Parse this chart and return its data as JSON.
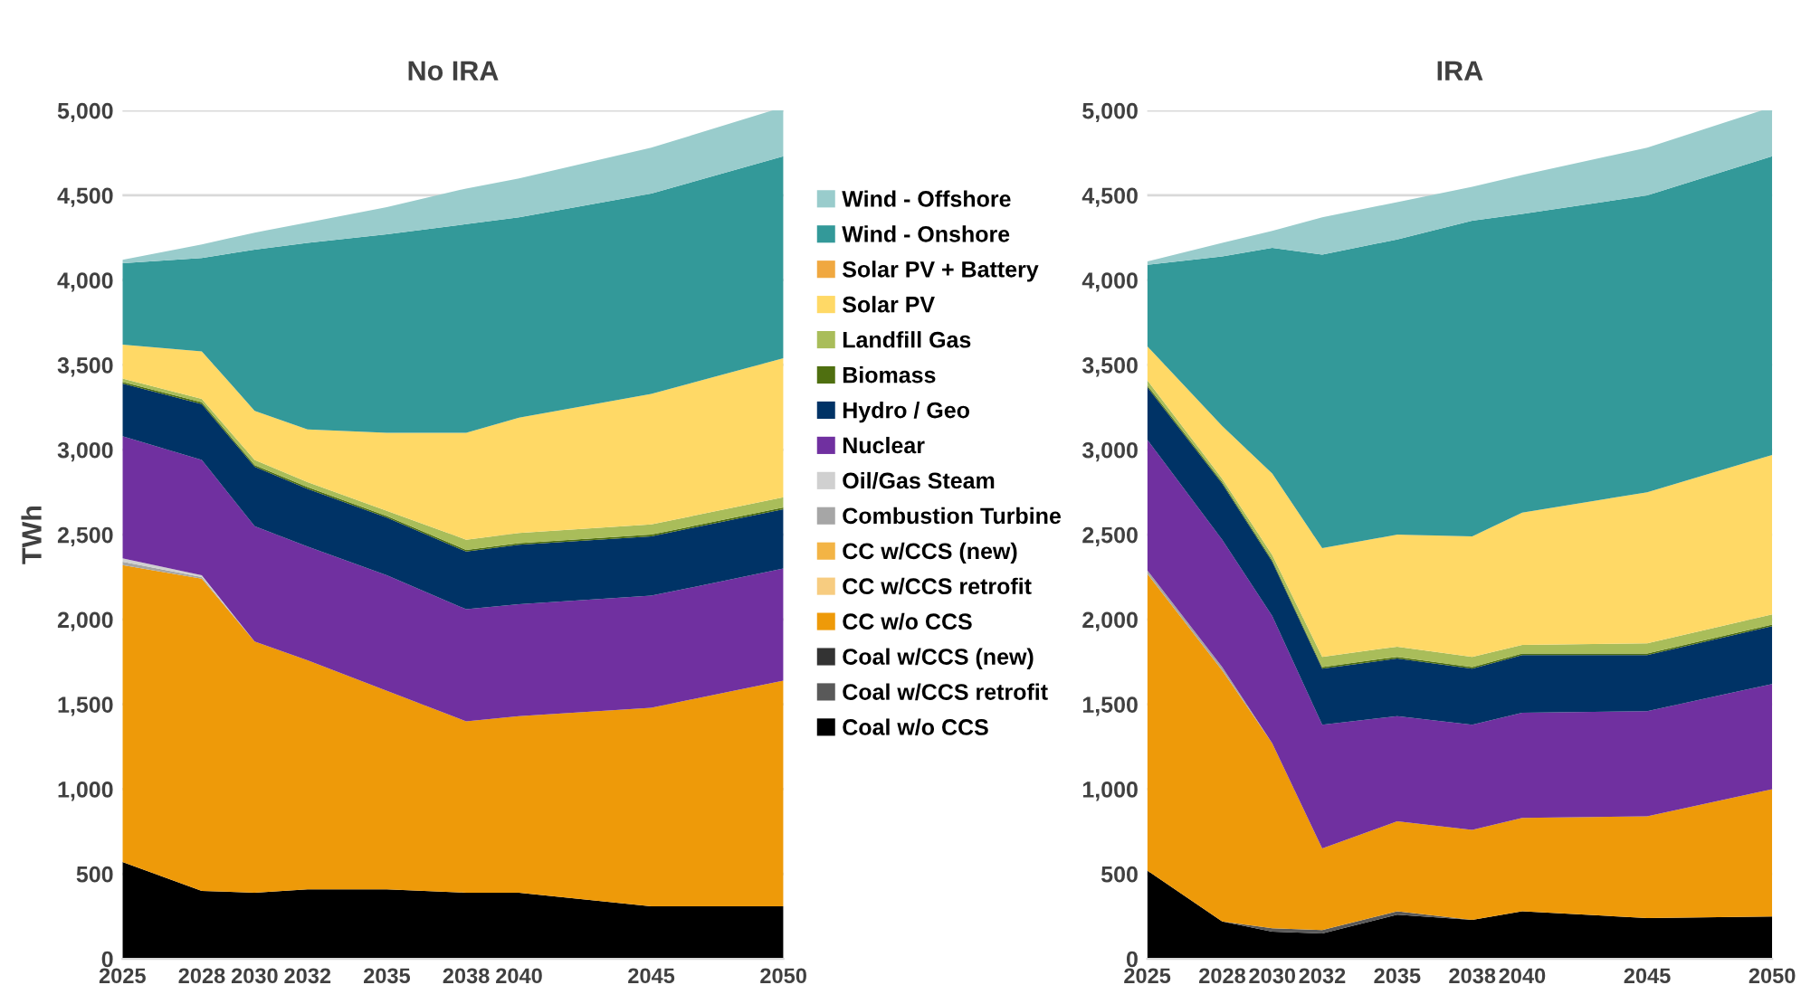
{
  "chart_data": [
    {
      "type": "area",
      "stacked": true,
      "title": "No IRA",
      "ylabel": "TWh",
      "legend": "right",
      "grid": "y",
      "x": [
        2025,
        2028,
        2030,
        2032,
        2035,
        2038,
        2040,
        2045,
        2050
      ],
      "xlim": [
        2025,
        2050
      ],
      "xticks": [
        2025,
        2028,
        2030,
        2032,
        2035,
        2038,
        2040,
        2045,
        2050
      ],
      "ylim": [
        0,
        5000
      ],
      "yticks": [
        0,
        500,
        {
          "value": 1000,
          "label": "1,000"
        },
        {
          "value": 1500,
          "label": "1,500"
        },
        {
          "value": 2000,
          "label": "2,000"
        },
        {
          "value": 2500,
          "label": "2,500"
        },
        {
          "value": 3000,
          "label": "3,000"
        },
        {
          "value": 3500,
          "label": "3,500"
        },
        {
          "value": 4000,
          "label": "4,000"
        },
        {
          "value": 4500,
          "label": "4,500"
        },
        {
          "value": 5000,
          "label": "5,000"
        }
      ],
      "series": [
        {
          "name": "Coal w/o CCS",
          "color": "#000000",
          "values": [
            570,
            400,
            390,
            410,
            410,
            390,
            390,
            310,
            310
          ]
        },
        {
          "name": "Coal w/CCS retrofit",
          "color": "#595959",
          "values": [
            null,
            null,
            null,
            null,
            null,
            null,
            null,
            null,
            null
          ]
        },
        {
          "name": "Coal w/CCS (new)",
          "color": "#333333",
          "values": [
            null,
            null,
            null,
            null,
            null,
            null,
            null,
            null,
            null
          ]
        },
        {
          "name": "CC w/o CCS",
          "color": "#ee9a09",
          "values": [
            1750,
            1840,
            1480,
            1350,
            1170,
            1010,
            1040,
            1170,
            1330
          ]
        },
        {
          "name": "CC w/CCS retrofit",
          "color": "#f7cc80",
          "values": [
            null,
            null,
            null,
            null,
            null,
            null,
            null,
            null,
            null
          ]
        },
        {
          "name": "CC w/CCS (new)",
          "color": "#f3b445",
          "values": [
            null,
            null,
            null,
            null,
            null,
            null,
            null,
            null,
            null
          ]
        },
        {
          "name": "Combustion Turbine",
          "color": "#a6a6a6",
          "values": [
            20,
            10,
            0,
            0,
            0,
            0,
            0,
            0,
            0
          ]
        },
        {
          "name": "Oil/Gas Steam",
          "color": "#d0d0d0",
          "values": [
            20,
            10,
            0,
            0,
            0,
            0,
            0,
            0,
            0
          ]
        },
        {
          "name": "Nuclear",
          "color": "#7030a0",
          "values": [
            720,
            680,
            680,
            670,
            680,
            660,
            660,
            660,
            660
          ]
        },
        {
          "name": "Hydro / Geo",
          "color": "#003366",
          "values": [
            310,
            330,
            350,
            340,
            340,
            340,
            350,
            350,
            350
          ]
        },
        {
          "name": "Biomass",
          "color": "#4f6f10",
          "values": [
            10,
            10,
            10,
            10,
            10,
            10,
            10,
            10,
            10
          ]
        },
        {
          "name": "Landfill Gas",
          "color": "#a9bd5a",
          "values": [
            20,
            20,
            30,
            30,
            30,
            60,
            60,
            60,
            60
          ]
        },
        {
          "name": "Solar PV",
          "color": "#ffd966",
          "values": [
            200,
            280,
            290,
            310,
            460,
            630,
            680,
            770,
            820
          ]
        },
        {
          "name": "Solar PV + Battery",
          "color": "#f0a840",
          "values": [
            null,
            null,
            null,
            null,
            null,
            null,
            null,
            null,
            null
          ]
        },
        {
          "name": "Wind - Onshore",
          "color": "#339999",
          "values": [
            480,
            550,
            950,
            1100,
            1170,
            1230,
            1180,
            1180,
            1190
          ]
        },
        {
          "name": "Wind - Offshore",
          "color": "#99cccc",
          "values": [
            20,
            80,
            100,
            120,
            160,
            210,
            230,
            270,
            290
          ]
        }
      ]
    },
    {
      "type": "area",
      "stacked": true,
      "title": "IRA",
      "grid": "y",
      "x": [
        2025,
        2028,
        2030,
        2032,
        2035,
        2038,
        2040,
        2045,
        2050
      ],
      "xlim": [
        2025,
        2050
      ],
      "xticks": [
        2025,
        2028,
        2030,
        2032,
        2035,
        2038,
        2040,
        2045,
        2050
      ],
      "ylim": [
        0,
        5000
      ],
      "yticks": [
        0,
        500,
        {
          "value": 1000,
          "label": "1,000"
        },
        {
          "value": 1500,
          "label": "1,500"
        },
        {
          "value": 2000,
          "label": "2,000"
        },
        {
          "value": 2500,
          "label": "2,500"
        },
        {
          "value": 3000,
          "label": "3,000"
        },
        {
          "value": 3500,
          "label": "3,500"
        },
        {
          "value": 4000,
          "label": "4,000"
        },
        {
          "value": 4500,
          "label": "4,500"
        },
        {
          "value": 5000,
          "label": "5,000"
        }
      ],
      "series": [
        {
          "color": "#000000",
          "values": [
            520,
            220,
            160,
            150,
            260,
            230,
            280,
            240,
            250
          ]
        },
        {
          "color": "#595959",
          "values": [
            0,
            0,
            20,
            20,
            20,
            0,
            0,
            0,
            0
          ]
        },
        {
          "values": [
            null,
            null,
            null,
            null,
            null,
            null,
            null,
            null,
            null
          ]
        },
        {
          "color": "#ee9a09",
          "values": [
            1750,
            1480,
            1090,
            480,
            530,
            530,
            550,
            600,
            750
          ]
        },
        {
          "values": [
            null,
            null,
            null,
            null,
            null,
            null,
            null,
            null,
            null
          ]
        },
        {
          "values": [
            null,
            null,
            null,
            null,
            null,
            null,
            null,
            null,
            null
          ]
        },
        {
          "color": "#a6a6a6",
          "values": [
            20,
            20,
            0,
            0,
            0,
            0,
            0,
            0,
            0
          ]
        },
        {
          "values": [
            null,
            null,
            null,
            null,
            null,
            null,
            null,
            null,
            null
          ]
        },
        {
          "color": "#7030a0",
          "values": [
            770,
            750,
            750,
            730,
            620,
            620,
            620,
            620,
            620
          ]
        },
        {
          "color": "#003366",
          "values": [
            310,
            330,
            320,
            330,
            340,
            330,
            340,
            330,
            340
          ]
        },
        {
          "color": "#4f6f10",
          "values": [
            10,
            10,
            10,
            10,
            10,
            10,
            10,
            10,
            10
          ]
        },
        {
          "color": "#a9bd5a",
          "values": [
            30,
            20,
            30,
            60,
            60,
            60,
            50,
            60,
            60
          ]
        },
        {
          "color": "#ffd966",
          "values": [
            200,
            310,
            480,
            640,
            660,
            710,
            780,
            890,
            940
          ]
        },
        {
          "values": [
            null,
            null,
            null,
            null,
            null,
            null,
            null,
            null,
            null
          ]
        },
        {
          "color": "#339999",
          "values": [
            480,
            1000,
            1330,
            1730,
            1740,
            1860,
            1760,
            1750,
            1760
          ]
        },
        {
          "color": "#99cccc",
          "values": [
            20,
            80,
            100,
            220,
            220,
            200,
            230,
            280,
            290
          ]
        }
      ]
    }
  ]
}
